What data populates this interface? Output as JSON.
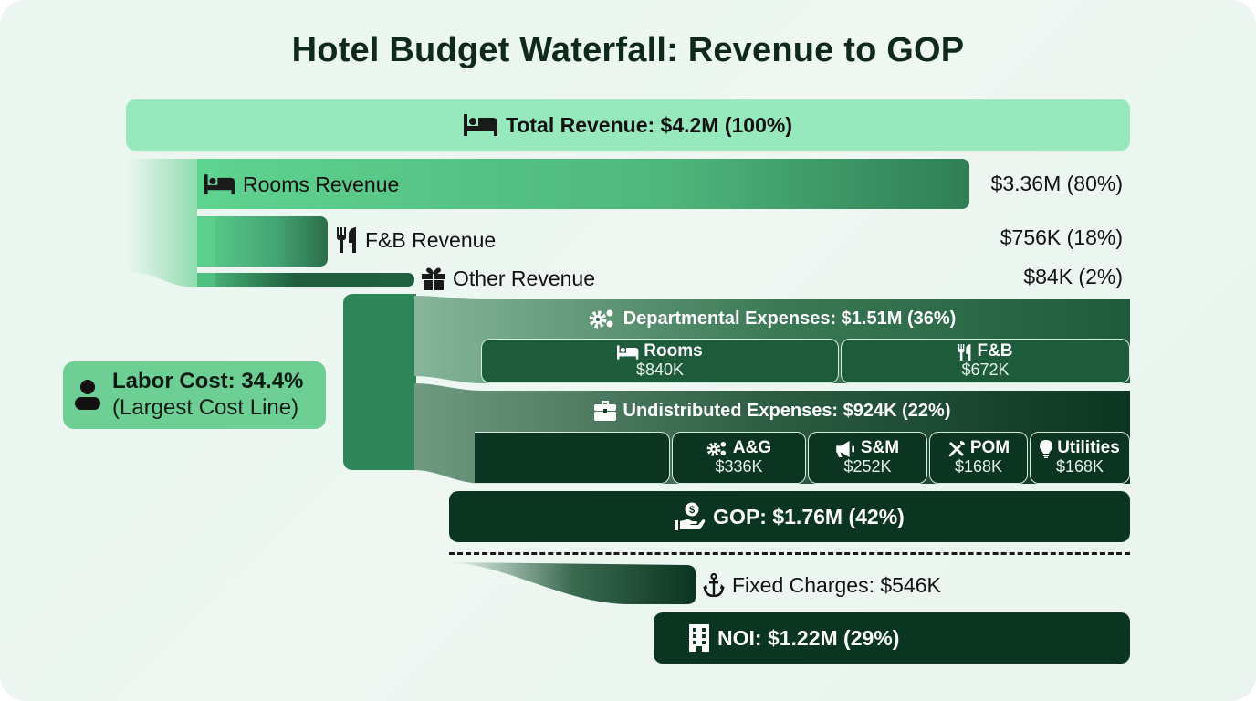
{
  "title": "Hotel Budget Waterfall: Revenue to GOP",
  "colors": {
    "total_revenue": "#98e8bd",
    "rooms_revenue": "#5bcf8a",
    "fb_revenue": "#3f9e6a",
    "other_revenue": "#1f5e3d",
    "departmental": "#1d5b3b",
    "undistributed": "#0b3520",
    "gop": "#0a3520",
    "noi": "#0a3520",
    "callout": "#6dcf93",
    "background": "#ecf7f1"
  },
  "chart_data": {
    "type": "waterfall",
    "title": "Hotel Budget Waterfall: Revenue to GOP",
    "units": "USD",
    "total_revenue": {
      "label": "Total Revenue: $4.2M (100%)",
      "value": 4200000,
      "pct": 100,
      "icon": "bed-icon"
    },
    "revenue_breakdown": [
      {
        "label": "Rooms Revenue",
        "value_label": "$3.36M (80%)",
        "value": 3360000,
        "pct": 80,
        "icon": "bed-icon"
      },
      {
        "label": "F&B Revenue",
        "value_label": "$756K (18%)",
        "value": 756000,
        "pct": 18,
        "icon": "utensils-icon"
      },
      {
        "label": "Other Revenue",
        "value_label": "$84K (2%)",
        "value": 84000,
        "pct": 2,
        "icon": "gift-icon"
      }
    ],
    "departmental_expenses": {
      "label": "Departmental Expenses: $1.51M (36%)",
      "value": 1510000,
      "pct": 36,
      "icon": "gears-icon",
      "items": [
        {
          "label": "Rooms",
          "value_label": "$840K",
          "value": 840000,
          "icon": "bed-icon"
        },
        {
          "label": "F&B",
          "value_label": "$672K",
          "value": 672000,
          "icon": "utensils-icon"
        }
      ]
    },
    "undistributed_expenses": {
      "label": "Undistributed Expenses: $924K (22%)",
      "value": 924000,
      "pct": 22,
      "icon": "briefcase-icon",
      "items": [
        {
          "label": "A&G",
          "value_label": "$336K",
          "value": 336000,
          "icon": "gears-icon"
        },
        {
          "label": "S&M",
          "value_label": "$252K",
          "value": 252000,
          "icon": "megaphone-icon"
        },
        {
          "label": "POM",
          "value_label": "$168K",
          "value": 168000,
          "icon": "tools-icon"
        },
        {
          "label": "Utilities",
          "value_label": "$168K",
          "value": 168000,
          "icon": "lightbulb-icon"
        }
      ]
    },
    "gop": {
      "label": "GOP: $1.76M (42%)",
      "value": 1760000,
      "pct": 42,
      "icon": "hand-dollar-icon"
    },
    "fixed_charges": {
      "label": "Fixed Charges: $546K",
      "value": 546000,
      "icon": "anchor-icon"
    },
    "noi": {
      "label": "NOI: $1.22M (29%)",
      "value": 1220000,
      "pct": 29,
      "icon": "building-icon"
    },
    "annotation": {
      "line1": "Labor Cost: 34.4%",
      "line2": "(Largest Cost Line)",
      "value_pct": 34.4,
      "icon": "person-icon"
    }
  }
}
